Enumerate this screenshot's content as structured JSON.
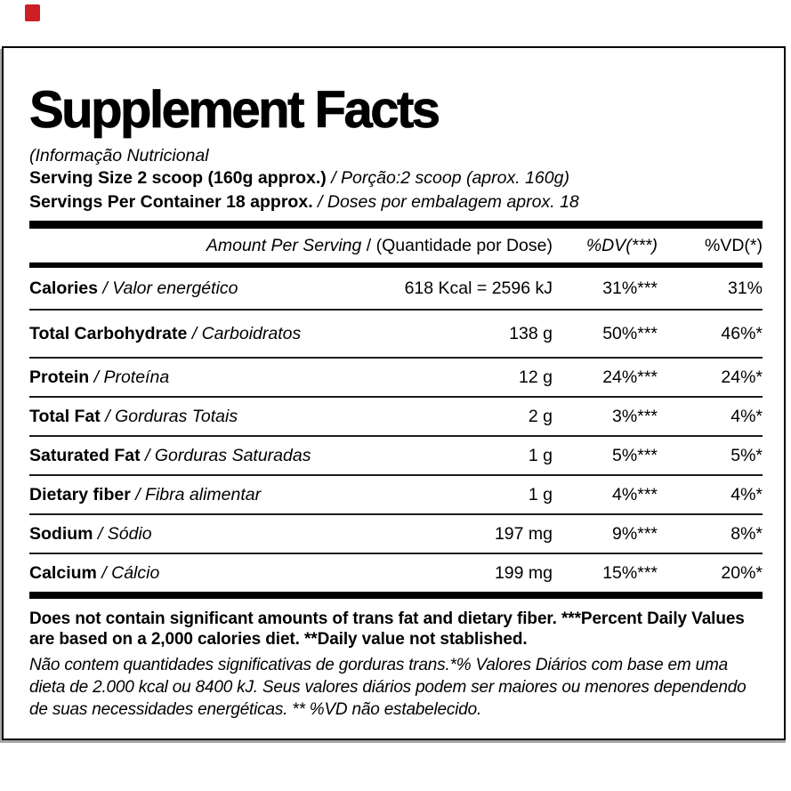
{
  "accent_color": "#cc1f26",
  "title": "Supplement Facts",
  "subtitle_pt": "(Informação Nutricional",
  "serving": {
    "size_en": "Serving Size 2 scoop (160g approx.)",
    "size_pt": "/ Porção:2 scoop (aprox. 160g)",
    "count_en": "Servings Per Container 18 approx.",
    "count_pt": "/ Doses por embalagem aprox. 18"
  },
  "table": {
    "header": {
      "amount_en": "Amount Per Serving",
      "amount_pt": "/ (Quantidade por Dose)",
      "dv": "%DV(***)",
      "vd": "%VD(*)"
    },
    "rows": [
      {
        "en": "Calories",
        "pt": "/ Valor energético",
        "amount": "618 Kcal = 2596 kJ",
        "dv": "31%***",
        "vd": "31%"
      },
      {
        "en": "Total Carbohydrate",
        "pt": "/ Carboidratos",
        "amount": "138 g",
        "dv": "50%***",
        "vd": "46%*"
      },
      {
        "en": "Protein",
        "pt": "/ Proteína",
        "amount": "12 g",
        "dv": "24%***",
        "vd": "24%*"
      },
      {
        "en": "Total Fat",
        "pt": "/ Gorduras Totais",
        "amount": "2 g",
        "dv": "3%***",
        "vd": "4%*"
      },
      {
        "en": "Saturated Fat",
        "pt": "/ Gorduras Saturadas",
        "amount": "1 g",
        "dv": "5%***",
        "vd": "5%*"
      },
      {
        "en": "Dietary fiber",
        "pt": "/ Fibra alimentar",
        "amount": "1 g",
        "dv": "4%***",
        "vd": "4%*"
      },
      {
        "en": "Sodium",
        "pt": "/ Sódio",
        "amount": "197 mg",
        "dv": "9%***",
        "vd": "8%*"
      },
      {
        "en": "Calcium",
        "pt": "/ Cálcio",
        "amount": "199 mg",
        "dv": "15%***",
        "vd": "20%*"
      }
    ]
  },
  "footnote_en": "Does not contain significant amounts of trans fat and dietary fiber. ***Percent Daily Values are based on a 2,000 calories diet. **Daily value not stablished.",
  "footnote_pt": "Não contem quantidades significativas de gorduras trans.*% Valores Diários com base em uma dieta de 2.000 kcal ou 8400 kJ. Seus valores diários podem ser maiores ou menores dependendo de suas necessidades energéticas. ** %VD não estabelecido."
}
